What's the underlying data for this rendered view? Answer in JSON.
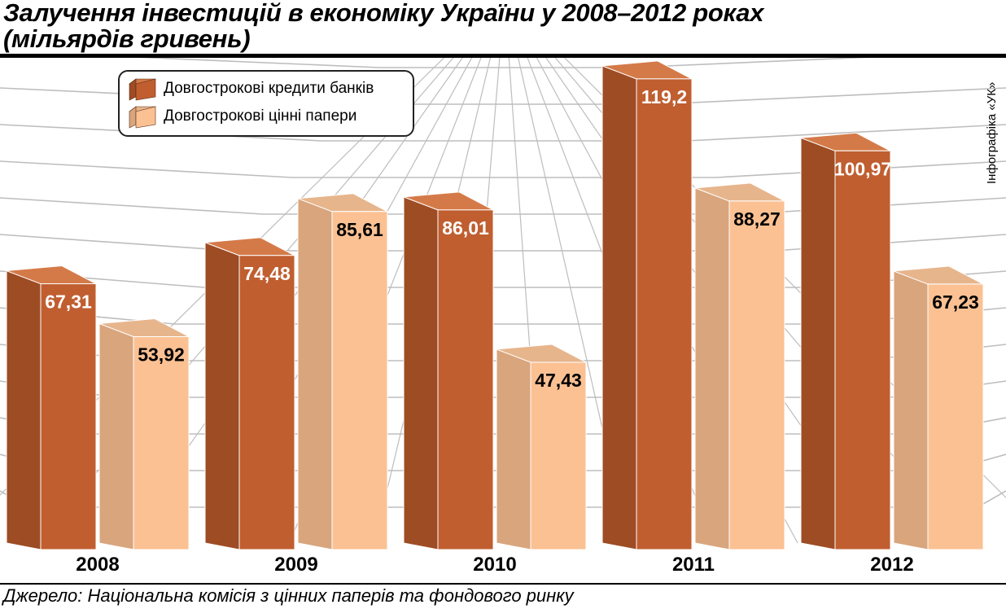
{
  "title_line1": "Залучення інвестицій в економіку України у 2008–2012 роках",
  "title_line2": "(мільярдів гривень)",
  "credit": "Інфографіка «УК»",
  "source": "Джерело: Національна комісія з цінних паперів та фондового ринку",
  "colors": {
    "series1_front": "#c05e30",
    "series1_side": "#9e4c24",
    "series1_top": "#d47a48",
    "series2_front": "#fbc193",
    "series2_side": "#d9a57d",
    "series2_top": "#e7b58c",
    "grid": "#bdbdbd"
  },
  "chart_data": {
    "type": "bar",
    "title": "Залучення інвестицій в економіку України у 2008–2012 роках",
    "subtitle": "(мільярдів гривень)",
    "categories": [
      "2008",
      "2009",
      "2010",
      "2011",
      "2012"
    ],
    "series": [
      {
        "name": "Довгострокові кредити банків",
        "values": [
          67.31,
          74.48,
          86.01,
          119.2,
          100.97
        ],
        "labels": [
          "67,31",
          "74,48",
          "86,01",
          "119,2",
          "100,97"
        ]
      },
      {
        "name": "Довгострокові цінні папери",
        "values": [
          53.92,
          85.61,
          47.43,
          88.27,
          67.23
        ],
        "labels": [
          "53,92",
          "85,61",
          "47,43",
          "88,27",
          "67,23"
        ]
      }
    ],
    "legend": "top-left",
    "grid": true
  }
}
